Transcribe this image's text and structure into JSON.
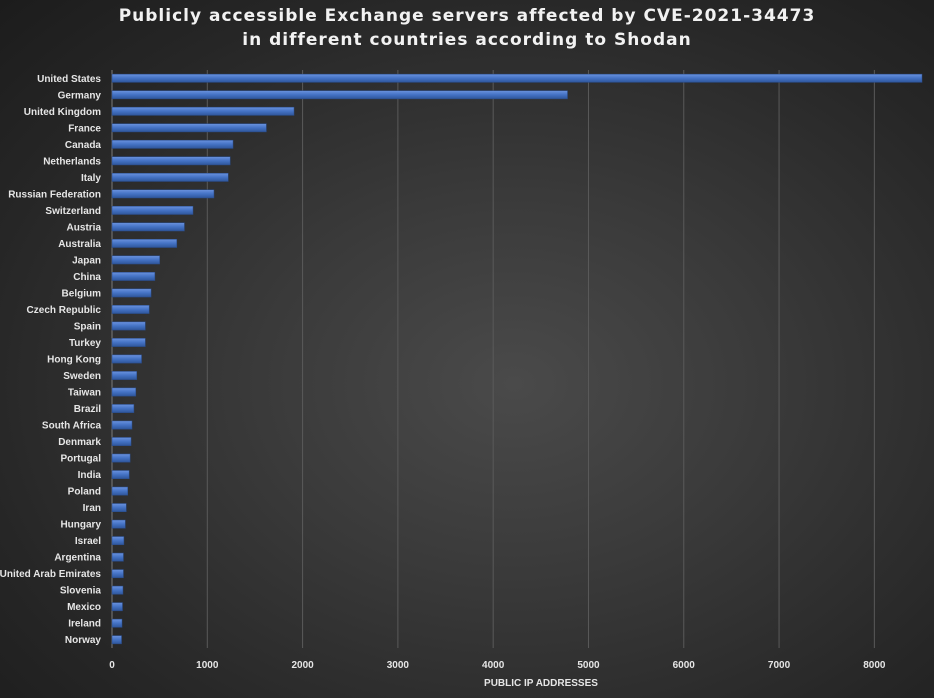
{
  "chart_data": {
    "type": "bar",
    "orientation": "horizontal",
    "title_lines": [
      "Publicly accessible Exchange servers affected by CVE-2021-34473",
      "in different countries according to Shodan"
    ],
    "xlabel": "PUBLIC IP ADDRESSES",
    "ylabel": "",
    "xlim": [
      0,
      8500
    ],
    "x_ticks": [
      0,
      1000,
      2000,
      3000,
      4000,
      5000,
      6000,
      7000,
      8000
    ],
    "grid": true,
    "legend": "none",
    "colors": {
      "bar": "#4472c4",
      "grid": "#5a5a5a",
      "text": "#e6e6e6"
    },
    "categories": [
      "United States",
      "Germany",
      "United Kingdom",
      "France",
      "Canada",
      "Netherlands",
      "Italy",
      "Russian Federation",
      "Switzerland",
      "Austria",
      "Australia",
      "Japan",
      "China",
      "Belgium",
      "Czech Republic",
      "Spain",
      "Turkey",
      "Hong Kong",
      "Sweden",
      "Taiwan",
      "Brazil",
      "South Africa",
      "Denmark",
      "Portugal",
      "India",
      "Poland",
      "Iran",
      "Hungary",
      "Israel",
      "Argentina",
      "United Arab Emirates",
      "Slovenia",
      "Mexico",
      "Ireland",
      "Norway"
    ],
    "values": [
      8500,
      4780,
      1910,
      1620,
      1270,
      1240,
      1220,
      1070,
      850,
      760,
      680,
      500,
      450,
      410,
      390,
      350,
      350,
      310,
      260,
      250,
      230,
      210,
      200,
      190,
      180,
      165,
      150,
      140,
      125,
      120,
      120,
      115,
      110,
      105,
      100
    ]
  }
}
